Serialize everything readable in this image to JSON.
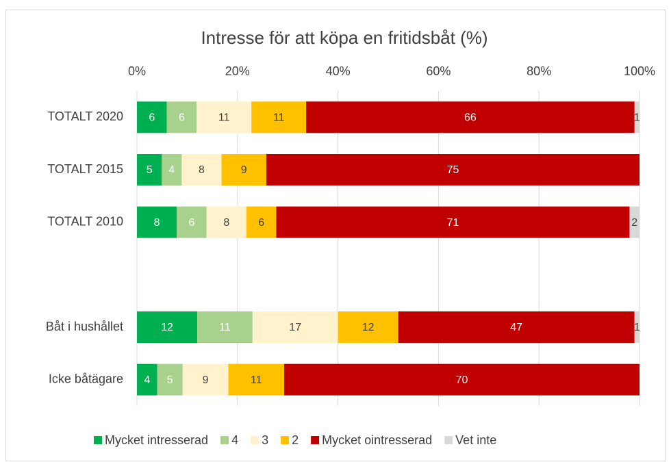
{
  "chart_data": {
    "type": "bar",
    "orientation": "horizontal",
    "stacked": "percent",
    "title": "Intresse för att köpa en fritidsbåt (%)",
    "categories": [
      "TOTALT 2020",
      "TOTALT 2015",
      "TOTALT 2010",
      null,
      "Båt i hushållet",
      "Icke båtägare"
    ],
    "series": [
      {
        "name": "Mycket intresserad",
        "color": "#00b050",
        "label_color": "#ffffff",
        "values": [
          6,
          5,
          8,
          null,
          12,
          4
        ]
      },
      {
        "name": "4",
        "color": "#a9d18e",
        "label_color": "#ffffff",
        "values": [
          6,
          4,
          6,
          null,
          11,
          5
        ]
      },
      {
        "name": "3",
        "color": "#fff2cc",
        "label_color": "#404040",
        "values": [
          11,
          8,
          8,
          null,
          17,
          9
        ]
      },
      {
        "name": "2",
        "color": "#ffc000",
        "label_color": "#404040",
        "values": [
          11,
          9,
          6,
          null,
          12,
          11
        ]
      },
      {
        "name": "Mycket ointresserad",
        "color": "#c00000",
        "label_color": "#ffffff",
        "values": [
          66,
          75,
          71,
          null,
          47,
          70
        ]
      },
      {
        "name": "Vet inte",
        "color": "#d9d9d9",
        "label_color": "#404040",
        "values": [
          1,
          null,
          2,
          null,
          1,
          null
        ]
      }
    ],
    "xlim": [
      0,
      100
    ],
    "xticks": [
      {
        "value": 0,
        "label": "0%"
      },
      {
        "value": 20,
        "label": "20%"
      },
      {
        "value": 40,
        "label": "40%"
      },
      {
        "value": 60,
        "label": "60%"
      },
      {
        "value": 80,
        "label": "80%"
      },
      {
        "value": 100,
        "label": "100%"
      }
    ],
    "grid": true,
    "legend": "bottom"
  }
}
